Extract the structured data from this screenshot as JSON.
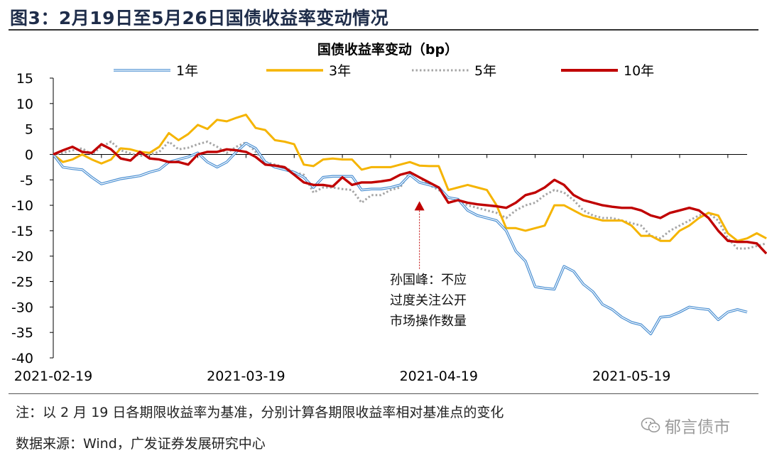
{
  "figure_title": "图3：2月19日至5月26日国债收益率变动情况",
  "note": "注：以 2 月 19 日各期限收益率为基准，分别计算各期限收益率相对基准点的变化",
  "source": "数据来源：Wind，广发证券发展研究中心",
  "watermark": "郁言债市",
  "watermark_icon": "wechat-icon",
  "annotation": {
    "lines": [
      "孙国峰：不应",
      "过度关注公开",
      "市场操作数量"
    ],
    "x": 38,
    "y": -3.5,
    "color": "#c00000"
  },
  "chart_data": {
    "type": "line",
    "title": "国债收益率变动（bp）",
    "xlabel": "",
    "ylabel": "",
    "ylim": [
      -40,
      15
    ],
    "yticks": [
      15,
      10,
      5,
      0,
      -5,
      -10,
      -15,
      -20,
      -25,
      -30,
      -35,
      -40
    ],
    "xlim": [
      0,
      72
    ],
    "x_tick_labels": [
      {
        "x": 0,
        "label": "2021-02-19"
      },
      {
        "x": 20,
        "label": "2021-03-19"
      },
      {
        "x": 40,
        "label": "2021-04-19"
      },
      {
        "x": 60,
        "label": "2021-05-19"
      }
    ],
    "legend_position": "top",
    "series": [
      {
        "name": "1年",
        "color": "#4a8fd2",
        "style": "double",
        "values": [
          0,
          -2.5,
          -2.8,
          -3,
          -4.5,
          -5.8,
          -5.3,
          -4.8,
          -4.5,
          -4.2,
          -3.5,
          -3,
          -1.5,
          -1,
          -0.5,
          0.3,
          -1.5,
          -2.5,
          -1.5,
          0.5,
          2.2,
          1.2,
          -1.5,
          -2.5,
          -3,
          -3.5,
          -4.5,
          -6.5,
          -4.5,
          -4.3,
          -4.3,
          -4.3,
          -7,
          -6.8,
          -6.8,
          -6.5,
          -6,
          -4,
          -5.5,
          -6,
          -6.5,
          -8.5,
          -8.8,
          -11,
          -12,
          -12.5,
          -13,
          -15,
          -19,
          -21,
          -26,
          -26.3,
          -26.5,
          -22,
          -23,
          -25.5,
          -27,
          -29.5,
          -30.5,
          -32,
          -33,
          -33.5,
          -35.3,
          -32,
          -31.8,
          -31,
          -30,
          -30.3,
          -30.5,
          -32.5,
          -31,
          -30.5,
          -31
        ]
      },
      {
        "name": "3年",
        "color": "#f5b400",
        "style": "solid",
        "values": [
          0,
          -1.5,
          -1,
          0,
          -1,
          -1.8,
          -1,
          1.2,
          1,
          0.5,
          0.3,
          1.5,
          4.2,
          2.8,
          4,
          5.8,
          5,
          6.8,
          6.5,
          7.2,
          7.8,
          5.2,
          4.8,
          2.8,
          2.5,
          2,
          -2,
          -2.3,
          -1,
          -0.8,
          -1,
          -1,
          -3,
          -2.5,
          -2.5,
          -2.5,
          -2,
          -1.5,
          -2.2,
          -2.3,
          -2.3,
          -7,
          -6.5,
          -6,
          -6.5,
          -7,
          -10,
          -14.5,
          -14.5,
          -15,
          -14.5,
          -14,
          -10,
          -10,
          -11,
          -12,
          -12.5,
          -13,
          -13,
          -13,
          -14,
          -16,
          -16,
          -17,
          -17,
          -15,
          -14,
          -12.5,
          -11.5,
          -12,
          -15.5,
          -17,
          -16.5,
          -15.5,
          -16.5
        ]
      },
      {
        "name": "5年",
        "color": "#a6a6a6",
        "style": "dotted",
        "values": [
          0,
          0.3,
          0.8,
          1.2,
          0,
          1.5,
          2.5,
          0.8,
          0.2,
          -0.3,
          0,
          0.5,
          2.5,
          1,
          1.3,
          2,
          2.5,
          1.5,
          0.3,
          1.5,
          2.4,
          0.5,
          -1.5,
          -2,
          -2.5,
          -3.5,
          -4,
          -7.5,
          -6.5,
          -6.5,
          -6.8,
          -7,
          -9.5,
          -8,
          -8,
          -7,
          -6.5,
          -3.5,
          -4.5,
          -6,
          -7,
          -8.5,
          -9,
          -10,
          -10.5,
          -11,
          -11.5,
          -12.5,
          -11,
          -10,
          -9.5,
          -8,
          -7,
          -7.5,
          -9,
          -11,
          -12,
          -12.5,
          -12.5,
          -13,
          -13.5,
          -14,
          -16,
          -16.5,
          -15,
          -14,
          -13,
          -12,
          -11.5,
          -13,
          -16.5,
          -18.5,
          -18.5,
          -18,
          -17.5
        ]
      },
      {
        "name": "10年",
        "color": "#c00000",
        "style": "solid-thick",
        "values": [
          0,
          0.8,
          1.5,
          0.5,
          0.3,
          2,
          1,
          -0.8,
          -1.2,
          0.5,
          -0.8,
          -1,
          -1.5,
          -1.5,
          -2,
          0,
          0.5,
          0.5,
          1,
          0.8,
          0.5,
          -0.5,
          -2,
          -2.2,
          -2.5,
          -4,
          -5.5,
          -6,
          -6,
          -6.3,
          -4.5,
          -6,
          -5.5,
          -5.5,
          -5.3,
          -5,
          -4,
          -3.5,
          -4.5,
          -5.5,
          -6.5,
          -9.5,
          -9,
          -9.5,
          -9.8,
          -10,
          -10.2,
          -10.5,
          -9.5,
          -8,
          -7.5,
          -6.5,
          -5,
          -6,
          -8,
          -9,
          -9.5,
          -10,
          -10.3,
          -10.5,
          -10.5,
          -11,
          -12,
          -12.5,
          -11.5,
          -11,
          -10.5,
          -11,
          -12.5,
          -15,
          -17,
          -17.2,
          -17.2,
          -17.5,
          -19.5
        ]
      }
    ]
  }
}
